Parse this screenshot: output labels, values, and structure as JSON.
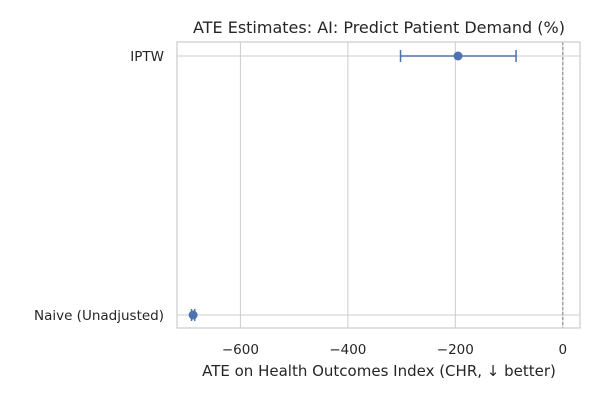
{
  "chart_data": {
    "type": "scatter",
    "title": "ATE Estimates: AI: Predict Patient Demand (%)",
    "xlabel": "ATE on Health Outcomes Index (CHR, ↓ better)",
    "ylabel": "",
    "categories": [
      "IPTW",
      "Naive (Unadjusted)"
    ],
    "estimates": [
      {
        "label": "IPTW",
        "value": -195,
        "ci_low": -302,
        "ci_high": -87
      },
      {
        "label": "Naive (Unadjusted)",
        "value": -688,
        "ci_low": -691,
        "ci_high": -685
      }
    ],
    "xlim": [
      -718,
      32
    ],
    "xticks": [
      -600,
      -400,
      -200,
      0
    ],
    "xtick_labels": [
      "−600",
      "−400",
      "−200",
      "0"
    ],
    "reference_line": 0,
    "grid": true,
    "legend": "none",
    "colors": {
      "point": "#4c72b0",
      "grid": "#cccccc",
      "axes": "#cccccc",
      "reference": "#7f7f7f"
    }
  }
}
